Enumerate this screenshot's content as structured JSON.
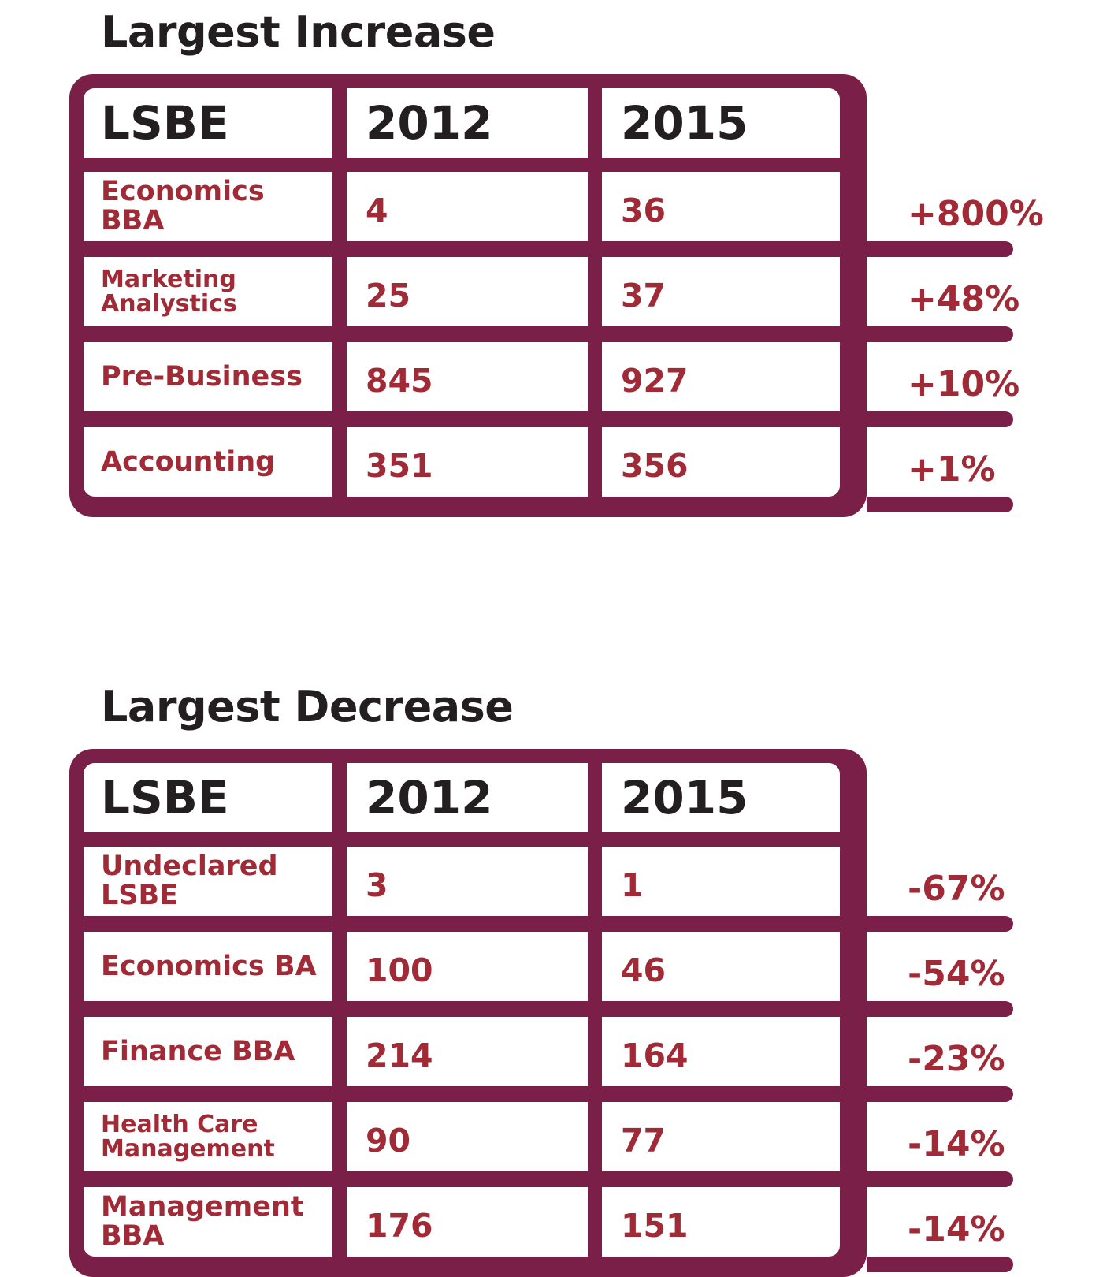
{
  "chart_data": [
    {
      "type": "table",
      "title": "Largest Increase",
      "columns": [
        "LSBE",
        "2012",
        "2015"
      ],
      "rows": [
        {
          "program": "Economics BBA",
          "y2012": "4",
          "y2015": "36",
          "change": "+800%"
        },
        {
          "program": "Marketing Analystics",
          "y2012": "25",
          "y2015": "37",
          "change": "+48%"
        },
        {
          "program": "Pre-Business",
          "y2012": "845",
          "y2015": "927",
          "change": "+10%"
        },
        {
          "program": "Accounting",
          "y2012": "351",
          "y2015": "356",
          "change": "+1%"
        }
      ]
    },
    {
      "type": "table",
      "title": "Largest Decrease",
      "columns": [
        "LSBE",
        "2012",
        "2015"
      ],
      "rows": [
        {
          "program": "Undeclared LSBE",
          "y2012": "3",
          "y2015": "1",
          "change": "-67%"
        },
        {
          "program": "Economics BA",
          "y2012": "100",
          "y2015": "46",
          "change": "-54%"
        },
        {
          "program": "Finance BBA",
          "y2012": "214",
          "y2015": "164",
          "change": "-23%"
        },
        {
          "program": "Health Care Management",
          "y2012": "90",
          "y2015": "77",
          "change": "-14%"
        },
        {
          "program": "Management BBA",
          "y2012": "176",
          "y2015": "151",
          "change": "-14%"
        }
      ]
    }
  ]
}
